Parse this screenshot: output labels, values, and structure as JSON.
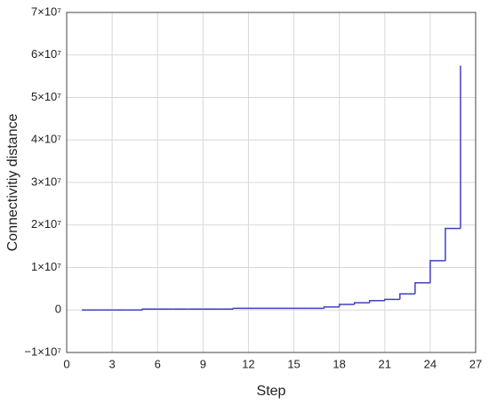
{
  "chart_data": {
    "type": "step",
    "xlabel": "Step",
    "ylabel": "Connectivitiy distance",
    "x": [
      1,
      2,
      3,
      4,
      5,
      6,
      7,
      8,
      9,
      10,
      11,
      12,
      13,
      14,
      15,
      16,
      17,
      18,
      19,
      20,
      21,
      22,
      23,
      24,
      25,
      26
    ],
    "series": [
      {
        "color": "#4040c0",
        "values": [
          0,
          0,
          0,
          0,
          200000,
          200000,
          200000,
          200000,
          200000,
          200000,
          400000,
          400000,
          400000,
          400000,
          400000,
          400000,
          700000,
          1300000,
          1700000,
          2200000,
          2500000,
          3800000,
          6400000,
          11600000,
          19200000,
          57500000
        ]
      }
    ],
    "xlim": [
      0,
      27
    ],
    "xticks": [
      0,
      3,
      6,
      9,
      12,
      15,
      18,
      21,
      24,
      27
    ],
    "ylim": [
      -10000000,
      70000000
    ],
    "yticks": [
      {
        "value": -10000000,
        "label": "−1×10⁷"
      },
      0,
      {
        "value": 10000000,
        "label": "1×10⁷"
      },
      {
        "value": 20000000,
        "label": "2×10⁷"
      },
      {
        "value": 30000000,
        "label": "3×10⁷"
      },
      {
        "value": 40000000,
        "label": "4×10⁷"
      },
      {
        "value": 50000000,
        "label": "5×10⁷"
      },
      {
        "value": 60000000,
        "label": "6×10⁷"
      },
      {
        "value": 70000000,
        "label": "7×10⁷"
      }
    ],
    "grid": true
  }
}
